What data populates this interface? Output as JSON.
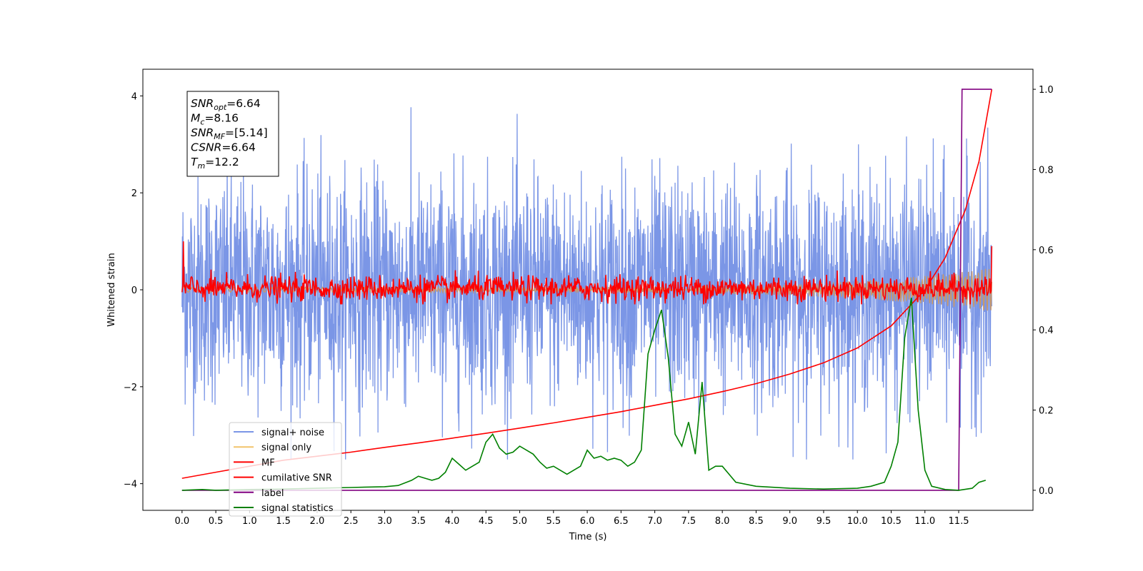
{
  "chart_data": {
    "type": "line",
    "xlabel": "Time (s)",
    "ylabel": "Whitened strain",
    "xlim": [
      -0.58,
      12.6
    ],
    "ylim": [
      -4.55,
      4.55
    ],
    "y2lim": [
      -0.05,
      1.05
    ],
    "x_ticks": [
      0.0,
      0.5,
      1.0,
      1.5,
      2.0,
      2.5,
      3.0,
      3.5,
      4.0,
      4.5,
      5.0,
      5.5,
      6.0,
      6.5,
      7.0,
      7.5,
      8.0,
      8.5,
      9.0,
      9.5,
      10.0,
      10.5,
      11.0,
      11.5
    ],
    "x_tick_labels": [
      "0.0",
      "0.5",
      "1.0",
      "1.5",
      "2.0",
      "2.5",
      "3.0",
      "3.5",
      "4.0",
      "4.5",
      "5.0",
      "5.5",
      "6.0",
      "6.5",
      "7.0",
      "7.5",
      "8.0",
      "8.5",
      "9.0",
      "9.5",
      "10.0",
      "10.5",
      "11.0",
      "11.5"
    ],
    "y_ticks": [
      4,
      2,
      0,
      -2,
      -4
    ],
    "y_tick_labels": [
      "4",
      "2",
      "0",
      "−2",
      "−4"
    ],
    "y2_ticks": [
      1.0,
      0.8,
      0.6,
      0.4,
      0.2,
      0.0
    ],
    "y2_tick_labels": [
      "1.0",
      "0.8",
      "0.6",
      "0.4",
      "0.2",
      "0.0"
    ],
    "grid": false,
    "legend_position": "bottom-left",
    "annotation": {
      "lines": [
        {
          "base": "SNR",
          "sub": "opt",
          "rest": "=6.64"
        },
        {
          "base": "M",
          "sub": "c",
          "rest": "=8.16"
        },
        {
          "base": "SNR",
          "sub": "MF",
          "rest": "=[5.14]"
        },
        {
          "base": "CSNR",
          "sub": "",
          "rest": "=6.64"
        },
        {
          "base": "T",
          "sub": "m",
          "rest": "=12.2"
        }
      ]
    },
    "series": [
      {
        "name": "signal+ noise",
        "color": "#7b96e6",
        "axis": "left",
        "style": "noise",
        "amplitude_range": [
          -3.5,
          4.1
        ],
        "x_range": [
          0.0,
          11.99
        ]
      },
      {
        "name": "signal only",
        "color": "#f2c46b",
        "axis": "left",
        "style": "chirp",
        "x_range": [
          0.0,
          11.99
        ],
        "amplitude_end": 0.4
      },
      {
        "name": "MF",
        "color": "#ff0000",
        "axis": "left",
        "style": "noise",
        "x_range": [
          0.0,
          11.99
        ],
        "amplitude_range": [
          -0.3,
          0.6
        ]
      },
      {
        "name": "cumilative SNR",
        "color": "#ff0000",
        "axis": "right",
        "x": [
          0.0,
          0.5,
          1.0,
          1.5,
          2.0,
          2.5,
          3.0,
          3.5,
          4.0,
          4.5,
          5.0,
          5.5,
          6.0,
          6.5,
          7.0,
          7.5,
          8.0,
          8.5,
          9.0,
          9.5,
          10.0,
          10.5,
          11.0,
          11.3,
          11.6,
          11.8,
          11.99
        ],
        "values": [
          0.03,
          0.045,
          0.06,
          0.075,
          0.085,
          0.095,
          0.107,
          0.118,
          0.13,
          0.142,
          0.155,
          0.168,
          0.182,
          0.196,
          0.212,
          0.228,
          0.246,
          0.266,
          0.29,
          0.318,
          0.355,
          0.41,
          0.5,
          0.58,
          0.7,
          0.82,
          1.0
        ]
      },
      {
        "name": "label",
        "color": "#800080",
        "axis": "right",
        "x": [
          0.0,
          11.5,
          11.55,
          11.99
        ],
        "values": [
          0.0,
          0.0,
          1.0,
          1.0
        ]
      },
      {
        "name": "signal statistics",
        "color": "#008000",
        "axis": "right",
        "x": [
          0.0,
          0.3,
          0.5,
          1.0,
          1.5,
          2.0,
          2.5,
          3.0,
          3.2,
          3.4,
          3.5,
          3.6,
          3.7,
          3.8,
          3.9,
          4.0,
          4.1,
          4.2,
          4.3,
          4.4,
          4.5,
          4.6,
          4.7,
          4.8,
          4.9,
          5.0,
          5.1,
          5.2,
          5.3,
          5.4,
          5.5,
          5.6,
          5.7,
          5.8,
          5.9,
          6.0,
          6.1,
          6.2,
          6.3,
          6.4,
          6.5,
          6.6,
          6.7,
          6.8,
          6.9,
          7.0,
          7.1,
          7.2,
          7.3,
          7.4,
          7.5,
          7.6,
          7.7,
          7.8,
          7.9,
          8.0,
          8.2,
          8.5,
          9.0,
          9.5,
          10.0,
          10.2,
          10.4,
          10.5,
          10.6,
          10.7,
          10.8,
          10.9,
          11.0,
          11.1,
          11.3,
          11.5,
          11.7,
          11.8,
          11.9
        ],
        "values": [
          0.0,
          0.002,
          0.0,
          0.002,
          0.003,
          0.005,
          0.007,
          0.009,
          0.012,
          0.025,
          0.035,
          0.03,
          0.025,
          0.03,
          0.045,
          0.08,
          0.065,
          0.05,
          0.06,
          0.07,
          0.12,
          0.14,
          0.105,
          0.09,
          0.095,
          0.11,
          0.1,
          0.09,
          0.07,
          0.055,
          0.06,
          0.05,
          0.04,
          0.05,
          0.06,
          0.1,
          0.08,
          0.085,
          0.075,
          0.08,
          0.075,
          0.06,
          0.07,
          0.1,
          0.34,
          0.4,
          0.45,
          0.33,
          0.14,
          0.11,
          0.17,
          0.09,
          0.27,
          0.05,
          0.06,
          0.06,
          0.02,
          0.01,
          0.005,
          0.003,
          0.005,
          0.01,
          0.02,
          0.06,
          0.12,
          0.38,
          0.48,
          0.2,
          0.05,
          0.01,
          0.002,
          0.0,
          0.005,
          0.02,
          0.025
        ]
      }
    ]
  }
}
